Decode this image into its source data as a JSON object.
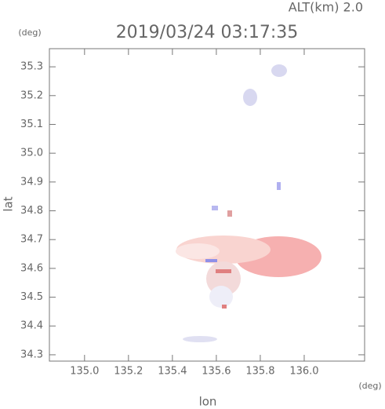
{
  "chart_data": {
    "type": "heatmap",
    "title": "2019/03/24 03:17:35",
    "subtitle": "ALT(km) 2.0",
    "x_label": "lon",
    "x_unit": "(deg)",
    "y_label": "lat",
    "y_unit": "(deg)",
    "xlim": [
      134.84,
      136.275
    ],
    "ylim": [
      34.278,
      35.363
    ],
    "xticks": [
      {
        "value": 135.0,
        "label": "135.0"
      },
      135.2,
      135.4,
      135.6,
      135.8,
      {
        "value": 136.0,
        "label": "136.0"
      }
    ],
    "yticks": [
      34.3,
      34.4,
      34.5,
      34.6,
      34.7,
      34.8,
      34.9,
      {
        "value": 35.0,
        "label": "35.0"
      },
      35.1,
      35.2,
      35.3
    ]
  }
}
